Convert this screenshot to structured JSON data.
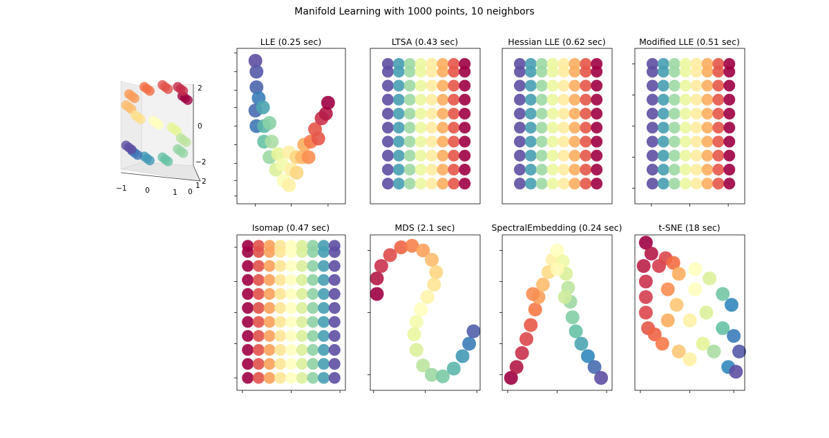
{
  "figure": {
    "title": "Manifold Learning with 1000 points, 10 neighbors"
  },
  "colormap": [
    "#9e0142",
    "#d53e4f",
    "#f46d43",
    "#fdae61",
    "#fee08b",
    "#ffffbf",
    "#e6f598",
    "#abdda4",
    "#66c2a5",
    "#3288bd",
    "#5e4fa2"
  ],
  "chart_data": [
    {
      "id": "s-curve-3d",
      "type": "scatter",
      "title": "",
      "projection": "3d",
      "xticks": [
        "−1",
        "0",
        "1"
      ],
      "yticks": [
        "0",
        "1",
        "2"
      ],
      "zticks": [
        "−2",
        "0",
        "2"
      ],
      "points": [
        [
          0.95,
          1.4,
          0
        ],
        [
          0.8,
          1.9,
          0.07
        ],
        [
          0.3,
          2.0,
          0.14
        ],
        [
          -0.3,
          1.9,
          0.2
        ],
        [
          -0.8,
          1.5,
          0.27
        ],
        [
          -0.9,
          0.9,
          0.33
        ],
        [
          -0.6,
          0.35,
          0.4
        ],
        [
          0,
          0.05,
          0.5
        ],
        [
          0.6,
          -0.3,
          0.6
        ],
        [
          0.9,
          -0.9,
          0.67
        ],
        [
          0.8,
          -1.5,
          0.73
        ],
        [
          0.3,
          -1.95,
          0.8
        ],
        [
          -0.3,
          -1.9,
          0.87
        ],
        [
          -0.7,
          -1.6,
          0.93
        ],
        [
          -0.9,
          -1.3,
          1
        ]
      ]
    },
    {
      "id": "lle",
      "type": "scatter",
      "title": "LLE (0.25 sec)",
      "points": [
        [
          0.17,
          0.92,
          1
        ],
        [
          0.18,
          0.85,
          0.98
        ],
        [
          0.18,
          0.75,
          0.96
        ],
        [
          0.2,
          0.68,
          0.92
        ],
        [
          0.17,
          0.6,
          0.95
        ],
        [
          0.24,
          0.62,
          0.85
        ],
        [
          0.18,
          0.5,
          0.93
        ],
        [
          0.25,
          0.5,
          0.82
        ],
        [
          0.3,
          0.52,
          0.75
        ],
        [
          0.25,
          0.4,
          0.8
        ],
        [
          0.32,
          0.4,
          0.7
        ],
        [
          0.3,
          0.3,
          0.72
        ],
        [
          0.38,
          0.32,
          0.6
        ],
        [
          0.36,
          0.22,
          0.62
        ],
        [
          0.42,
          0.25,
          0.55
        ],
        [
          0.43,
          0.15,
          0.52
        ],
        [
          0.48,
          0.12,
          0.45
        ],
        [
          0.5,
          0.22,
          0.45
        ],
        [
          0.48,
          0.33,
          0.45
        ],
        [
          0.55,
          0.3,
          0.38
        ],
        [
          0.55,
          0.2,
          0.38
        ],
        [
          0.6,
          0.3,
          0.32
        ],
        [
          0.62,
          0.38,
          0.3
        ],
        [
          0.68,
          0.4,
          0.22
        ],
        [
          0.66,
          0.3,
          0.25
        ],
        [
          0.72,
          0.48,
          0.15
        ],
        [
          0.75,
          0.42,
          0.15
        ],
        [
          0.78,
          0.55,
          0.08
        ],
        [
          0.82,
          0.58,
          0.04
        ],
        [
          0.84,
          0.65,
          0.0
        ]
      ]
    },
    {
      "id": "ltsa",
      "type": "scatter",
      "title": "LTSA (0.43 sec)",
      "grid": {
        "columns": [
          [
            0.16,
            1
          ],
          [
            0.26,
            0.86
          ],
          [
            0.36,
            0.72
          ],
          [
            0.46,
            0.58
          ],
          [
            0.56,
            0.44
          ],
          [
            0.66,
            0.3
          ],
          [
            0.76,
            0.15
          ],
          [
            0.86,
            0
          ]
        ],
        "rows": [
          0.13,
          0.22,
          0.31,
          0.4,
          0.49,
          0.58,
          0.67,
          0.76,
          0.85,
          0.9
        ]
      }
    },
    {
      "id": "hessian-lle",
      "type": "scatter",
      "title": "Hessian LLE (0.62 sec)",
      "grid": {
        "columns": [
          [
            0.16,
            1
          ],
          [
            0.26,
            0.86
          ],
          [
            0.36,
            0.72
          ],
          [
            0.46,
            0.58
          ],
          [
            0.56,
            0.44
          ],
          [
            0.66,
            0.3
          ],
          [
            0.76,
            0.15
          ],
          [
            0.86,
            0
          ]
        ],
        "rows": [
          0.13,
          0.22,
          0.31,
          0.4,
          0.49,
          0.58,
          0.67,
          0.76,
          0.85,
          0.9
        ]
      }
    },
    {
      "id": "modified-lle",
      "type": "scatter",
      "title": "Modified LLE (0.51 sec)",
      "grid": {
        "columns": [
          [
            0.16,
            1
          ],
          [
            0.26,
            0.86
          ],
          [
            0.36,
            0.72
          ],
          [
            0.46,
            0.58
          ],
          [
            0.56,
            0.44
          ],
          [
            0.66,
            0.3
          ],
          [
            0.76,
            0.15
          ],
          [
            0.86,
            0
          ]
        ],
        "rows": [
          0.13,
          0.22,
          0.31,
          0.4,
          0.49,
          0.58,
          0.67,
          0.76,
          0.85,
          0.9
        ]
      }
    },
    {
      "id": "isomap",
      "type": "scatter",
      "title": "Isomap (0.47 sec)",
      "grid": {
        "columns": [
          [
            0.1,
            0
          ],
          [
            0.2,
            0.14
          ],
          [
            0.3,
            0.28
          ],
          [
            0.4,
            0.42
          ],
          [
            0.5,
            0.5
          ],
          [
            0.6,
            0.62
          ],
          [
            0.7,
            0.74
          ],
          [
            0.8,
            0.86
          ],
          [
            0.9,
            1
          ]
        ],
        "rows": [
          0.08,
          0.17,
          0.26,
          0.35,
          0.44,
          0.53,
          0.62,
          0.71,
          0.8,
          0.89,
          0.93
        ]
      }
    },
    {
      "id": "mds",
      "type": "scatter",
      "title": "MDS (2.1 sec)",
      "points": [
        [
          0.06,
          0.62,
          0
        ],
        [
          0.06,
          0.72,
          0.04
        ],
        [
          0.1,
          0.8,
          0.08
        ],
        [
          0.18,
          0.87,
          0.13
        ],
        [
          0.28,
          0.92,
          0.18
        ],
        [
          0.38,
          0.93,
          0.23
        ],
        [
          0.48,
          0.9,
          0.28
        ],
        [
          0.56,
          0.84,
          0.33
        ],
        [
          0.6,
          0.76,
          0.38
        ],
        [
          0.58,
          0.68,
          0.42
        ],
        [
          0.52,
          0.6,
          0.46
        ],
        [
          0.46,
          0.52,
          0.5
        ],
        [
          0.42,
          0.44,
          0.54
        ],
        [
          0.4,
          0.36,
          0.58
        ],
        [
          0.42,
          0.26,
          0.62
        ],
        [
          0.48,
          0.16,
          0.67
        ],
        [
          0.56,
          0.1,
          0.72
        ],
        [
          0.66,
          0.09,
          0.77
        ],
        [
          0.76,
          0.14,
          0.82
        ],
        [
          0.84,
          0.22,
          0.87
        ],
        [
          0.9,
          0.3,
          0.92
        ],
        [
          0.94,
          0.38,
          0.97
        ]
      ]
    },
    {
      "id": "spectral-embedding",
      "type": "scatter",
      "title": "SpectralEmbedding (0.24 sec)",
      "points": [
        [
          0.08,
          0.08,
          0
        ],
        [
          0.13,
          0.15,
          0.04
        ],
        [
          0.18,
          0.24,
          0.08
        ],
        [
          0.22,
          0.33,
          0.12
        ],
        [
          0.26,
          0.42,
          0.16
        ],
        [
          0.3,
          0.52,
          0.22
        ],
        [
          0.33,
          0.6,
          0.28
        ],
        [
          0.37,
          0.68,
          0.33
        ],
        [
          0.42,
          0.76,
          0.39
        ],
        [
          0.46,
          0.84,
          0.45
        ],
        [
          0.5,
          0.9,
          0.5
        ],
        [
          0.55,
          0.83,
          0.56
        ],
        [
          0.58,
          0.75,
          0.62
        ],
        [
          0.6,
          0.66,
          0.67
        ],
        [
          0.62,
          0.57,
          0.72
        ],
        [
          0.64,
          0.47,
          0.76
        ],
        [
          0.67,
          0.38,
          0.8
        ],
        [
          0.72,
          0.3,
          0.85
        ],
        [
          0.78,
          0.22,
          0.9
        ],
        [
          0.84,
          0.15,
          0.95
        ],
        [
          0.9,
          0.08,
          1
        ],
        [
          0.28,
          0.62,
          0.25
        ],
        [
          0.5,
          0.78,
          0.48
        ],
        [
          0.57,
          0.6,
          0.64
        ]
      ]
    },
    {
      "id": "t-sne",
      "type": "scatter",
      "title": "t-SNE (18 sec)",
      "points": [
        [
          0.1,
          0.95,
          0
        ],
        [
          0.15,
          0.88,
          0.04
        ],
        [
          0.08,
          0.8,
          0.05
        ],
        [
          0.1,
          0.7,
          0.08
        ],
        [
          0.1,
          0.6,
          0.1
        ],
        [
          0.1,
          0.5,
          0.12
        ],
        [
          0.12,
          0.4,
          0.15
        ],
        [
          0.18,
          0.36,
          0.18
        ],
        [
          0.25,
          0.3,
          0.22
        ],
        [
          0.22,
          0.8,
          0.1
        ],
        [
          0.28,
          0.85,
          0.12
        ],
        [
          0.35,
          0.82,
          0.2
        ],
        [
          0.4,
          0.75,
          0.3
        ],
        [
          0.3,
          0.65,
          0.25
        ],
        [
          0.38,
          0.55,
          0.35
        ],
        [
          0.3,
          0.45,
          0.3
        ],
        [
          0.4,
          0.25,
          0.35
        ],
        [
          0.5,
          0.2,
          0.45
        ],
        [
          0.5,
          0.45,
          0.45
        ],
        [
          0.55,
          0.65,
          0.5
        ],
        [
          0.55,
          0.78,
          0.5
        ],
        [
          0.68,
          0.72,
          0.62
        ],
        [
          0.65,
          0.5,
          0.62
        ],
        [
          0.62,
          0.3,
          0.6
        ],
        [
          0.72,
          0.25,
          0.7
        ],
        [
          0.8,
          0.4,
          0.8
        ],
        [
          0.8,
          0.62,
          0.78
        ],
        [
          0.88,
          0.55,
          0.9
        ],
        [
          0.9,
          0.35,
          0.92
        ],
        [
          0.85,
          0.15,
          0.9
        ],
        [
          0.92,
          0.12,
          1
        ],
        [
          0.95,
          0.25,
          0.98
        ]
      ]
    }
  ]
}
